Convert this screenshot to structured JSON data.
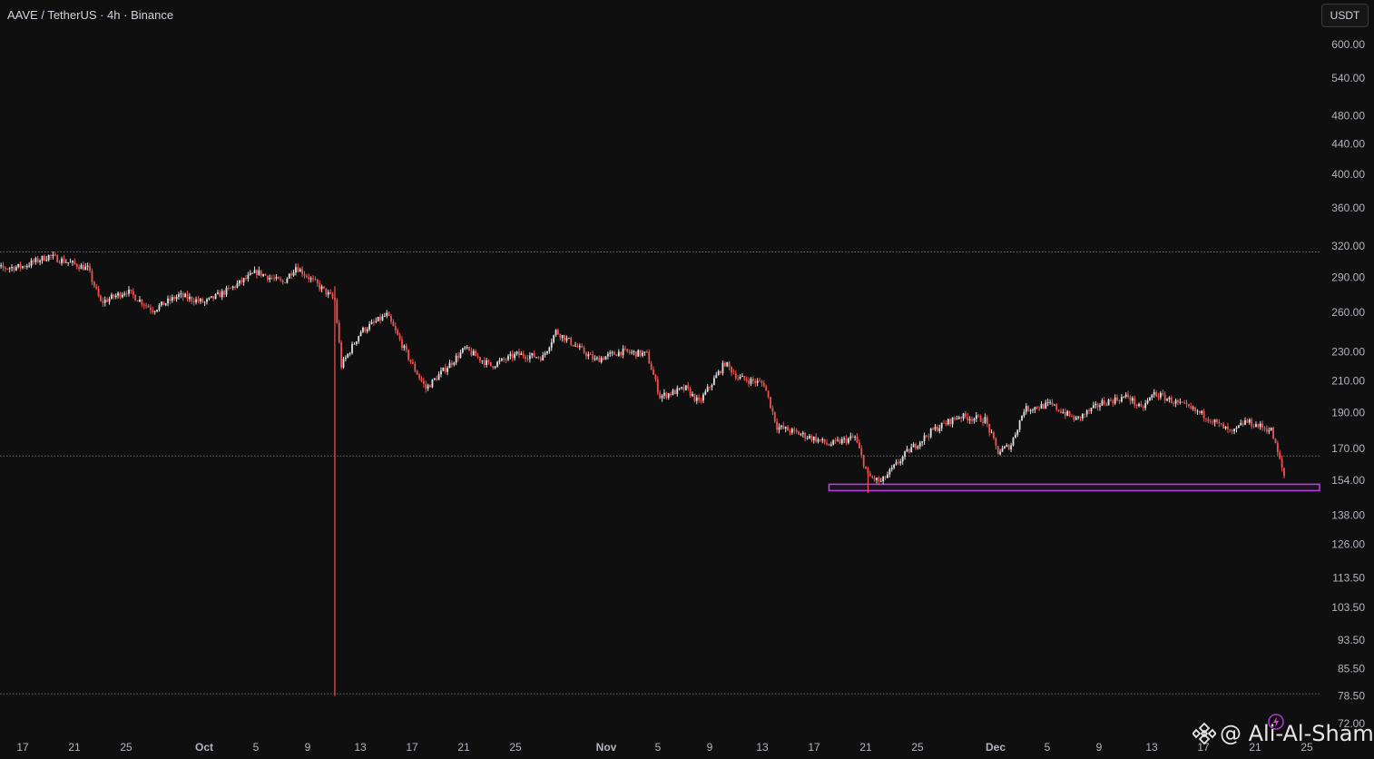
{
  "header": {
    "symbol_title": "AAVE / TetherUS · 4h · Binance",
    "currency_button": "USDT"
  },
  "watermark": {
    "text": "@ Ali-Al-Shami",
    "logo_icon": "binance-diamond-icon",
    "badge_icon": "lightning-badge-icon"
  },
  "colors": {
    "background": "#0f0f0f",
    "candle_up": "#e0e0e0",
    "candle_down": "#ef5350",
    "support_zone": "#b23fdc",
    "dotted_line": "#6a6a6a",
    "axis_text": "#b2b5be"
  },
  "chart_data": {
    "type": "candlestick",
    "title": "AAVE / TetherUS · 4h · Binance",
    "scale": "log",
    "y_unit": "USDT",
    "y_ticks": [
      "600.00",
      "540.00",
      "480.00",
      "440.00",
      "400.00",
      "360.00",
      "320.00",
      "290.00",
      "260.00",
      "230.00",
      "210.00",
      "190.00",
      "170.00",
      "154.00",
      "138.00",
      "126.00",
      "113.50",
      "103.50",
      "93.50",
      "85.50",
      "78.50",
      "72.00"
    ],
    "x_ticks": [
      {
        "label": "17",
        "bold": false
      },
      {
        "label": "21",
        "bold": false
      },
      {
        "label": "25",
        "bold": false
      },
      {
        "label": "Oct",
        "bold": true
      },
      {
        "label": "5",
        "bold": false
      },
      {
        "label": "9",
        "bold": false
      },
      {
        "label": "13",
        "bold": false
      },
      {
        "label": "17",
        "bold": false
      },
      {
        "label": "21",
        "bold": false
      },
      {
        "label": "25",
        "bold": false
      },
      {
        "label": "Nov",
        "bold": true
      },
      {
        "label": "5",
        "bold": false
      },
      {
        "label": "9",
        "bold": false
      },
      {
        "label": "13",
        "bold": false
      },
      {
        "label": "17",
        "bold": false
      },
      {
        "label": "21",
        "bold": false
      },
      {
        "label": "25",
        "bold": false
      },
      {
        "label": "Dec",
        "bold": true
      },
      {
        "label": "5",
        "bold": false
      },
      {
        "label": "9",
        "bold": false
      },
      {
        "label": "13",
        "bold": false
      },
      {
        "label": "17",
        "bold": false
      },
      {
        "label": "21",
        "bold": false
      },
      {
        "label": "25",
        "bold": false
      }
    ],
    "horizontal_levels": [
      314,
      166,
      79
    ],
    "support_zone": {
      "low": 149,
      "high": 152,
      "start": "Nov 18"
    },
    "price_path": [
      {
        "d": "Sep 14",
        "p": 297
      },
      {
        "d": "Sep 17",
        "p": 300
      },
      {
        "d": "Sep 19",
        "p": 310
      },
      {
        "d": "Sep 22",
        "p": 298
      },
      {
        "d": "Sep 23",
        "p": 268
      },
      {
        "d": "Sep 25",
        "p": 278
      },
      {
        "d": "Sep 27",
        "p": 262
      },
      {
        "d": "Sep 29",
        "p": 274
      },
      {
        "d": "Oct 1",
        "p": 268
      },
      {
        "d": "Oct 3",
        "p": 280
      },
      {
        "d": "Oct 5",
        "p": 295
      },
      {
        "d": "Oct 7",
        "p": 285
      },
      {
        "d": "Oct 8",
        "p": 300
      },
      {
        "d": "Oct 10",
        "p": 280
      },
      {
        "d": "Oct 11",
        "p": 270
      },
      {
        "d": "Oct 11.5",
        "p": 220
      },
      {
        "d": "Oct 13",
        "p": 245
      },
      {
        "d": "Oct 15",
        "p": 258
      },
      {
        "d": "Oct 17",
        "p": 220
      },
      {
        "d": "Oct 18",
        "p": 205
      },
      {
        "d": "Oct 21",
        "p": 232
      },
      {
        "d": "Oct 23",
        "p": 220
      },
      {
        "d": "Oct 25",
        "p": 228
      },
      {
        "d": "Oct 27",
        "p": 226
      },
      {
        "d": "Oct 28",
        "p": 245
      },
      {
        "d": "Oct 31",
        "p": 224
      },
      {
        "d": "Nov 2",
        "p": 230
      },
      {
        "d": "Nov 4",
        "p": 228
      },
      {
        "d": "Nov 5",
        "p": 200
      },
      {
        "d": "Nov 7",
        "p": 205
      },
      {
        "d": "Nov 8",
        "p": 196
      },
      {
        "d": "Nov 10",
        "p": 222
      },
      {
        "d": "Nov 11",
        "p": 212
      },
      {
        "d": "Nov 13",
        "p": 208
      },
      {
        "d": "Nov 14",
        "p": 182
      },
      {
        "d": "Nov 17",
        "p": 175
      },
      {
        "d": "Nov 18",
        "p": 172
      },
      {
        "d": "Nov 20",
        "p": 176
      },
      {
        "d": "Nov 21",
        "p": 156
      },
      {
        "d": "Nov 22",
        "p": 153
      },
      {
        "d": "Nov 24",
        "p": 168
      },
      {
        "d": "Nov 26",
        "p": 180
      },
      {
        "d": "Nov 28",
        "p": 188
      },
      {
        "d": "Nov 30",
        "p": 186
      },
      {
        "d": "Dec 1",
        "p": 168
      },
      {
        "d": "Dec 2",
        "p": 172
      },
      {
        "d": "Dec 3",
        "p": 192
      },
      {
        "d": "Dec 5",
        "p": 195
      },
      {
        "d": "Dec 7",
        "p": 186
      },
      {
        "d": "Dec 9",
        "p": 196
      },
      {
        "d": "Dec 11",
        "p": 200
      },
      {
        "d": "Dec 12",
        "p": 192
      },
      {
        "d": "Dec 13",
        "p": 202
      },
      {
        "d": "Dec 15",
        "p": 195
      },
      {
        "d": "Dec 17",
        "p": 188
      },
      {
        "d": "Dec 19",
        "p": 178
      },
      {
        "d": "Dec 20",
        "p": 185
      },
      {
        "d": "Dec 22",
        "p": 180
      },
      {
        "d": "Dec 23",
        "p": 156
      }
    ],
    "wicks": [
      {
        "d": "Oct 11",
        "high": 282,
        "low": 78.5
      },
      {
        "d": "Nov 21",
        "high": 160,
        "low": 148
      }
    ],
    "grid": false
  }
}
